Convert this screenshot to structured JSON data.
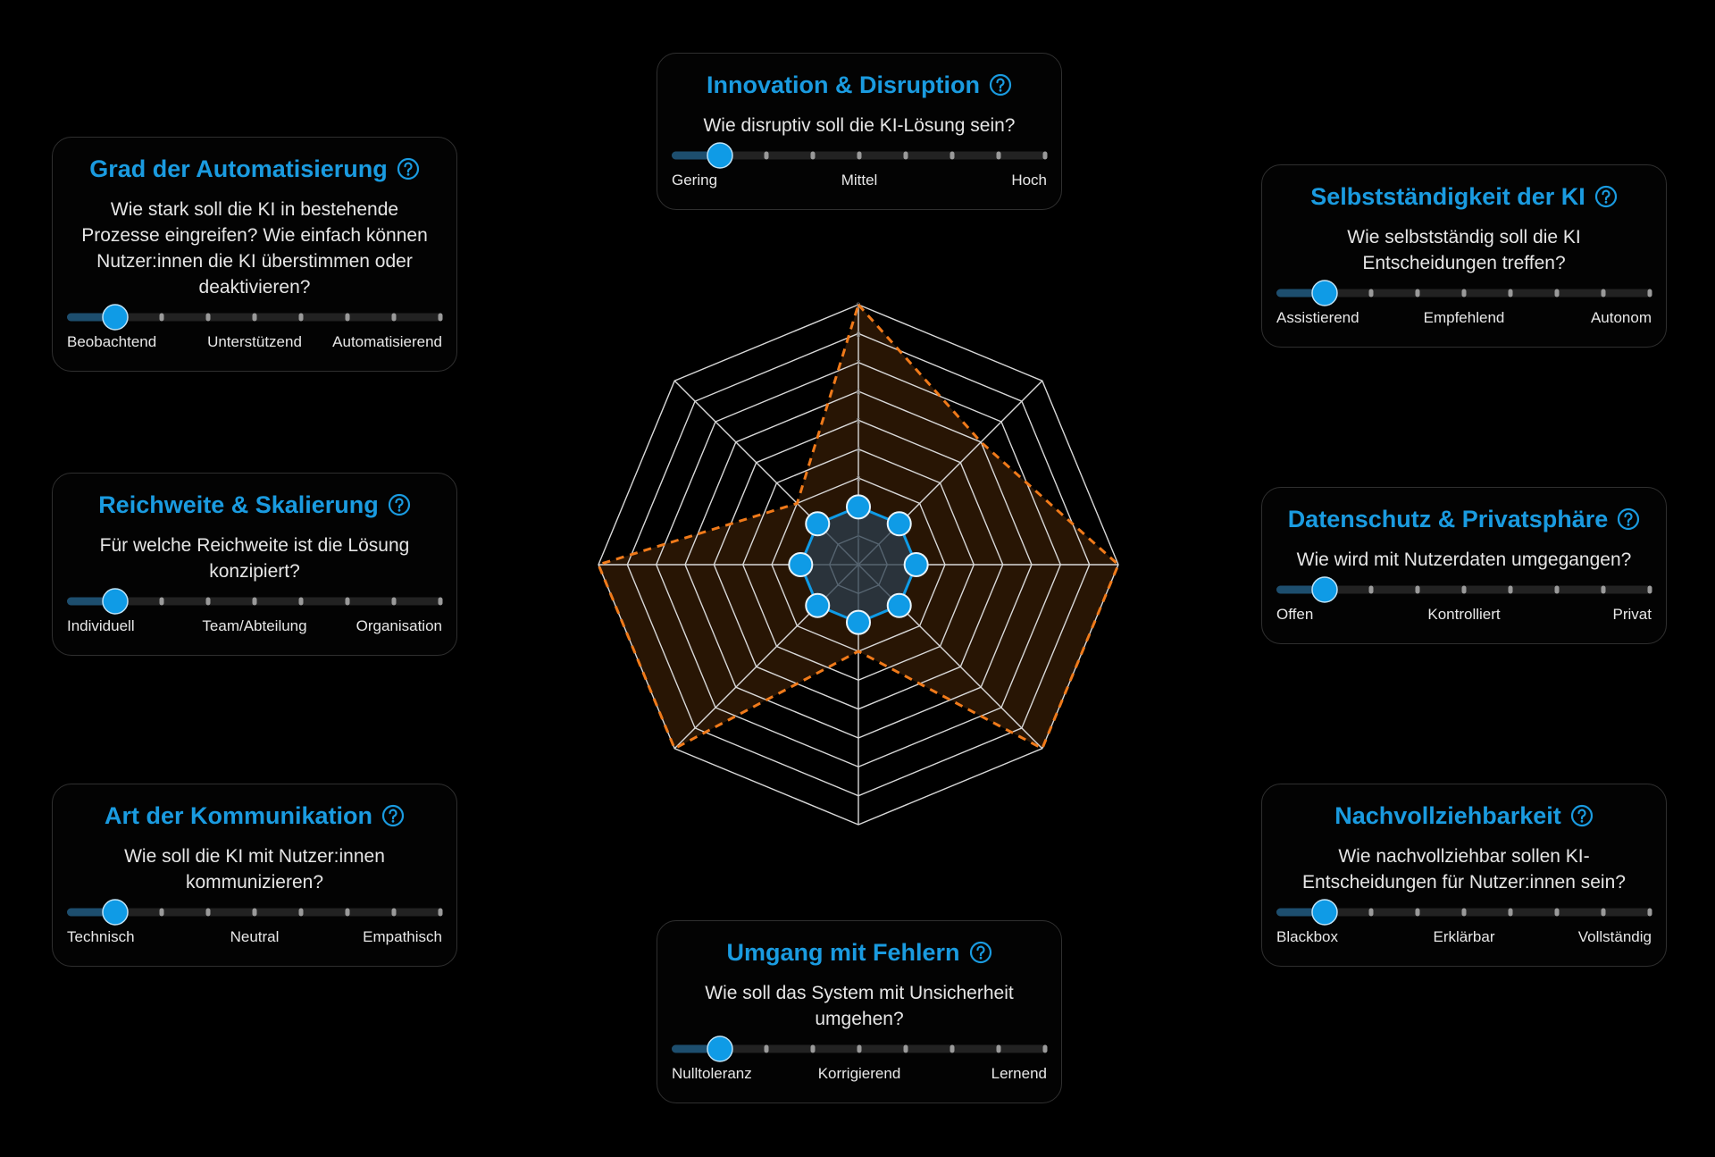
{
  "cards": [
    {
      "title": "Innovation & Disruption",
      "question": "Wie disruptiv soll die KI-Lösung sein?",
      "labels": [
        "Gering",
        "Mittel",
        "Hoch"
      ],
      "value": 2
    },
    {
      "title": "Selbstständigkeit der KI",
      "question": "Wie selbstständig soll die KI Entscheidungen treffen?",
      "labels": [
        "Assistierend",
        "Empfehlend",
        "Autonom"
      ],
      "value": 2
    },
    {
      "title": "Datenschutz & Privatsphäre",
      "question": "Wie wird mit Nutzerdaten umgegangen?",
      "labels": [
        "Offen",
        "Kontrolliert",
        "Privat"
      ],
      "value": 2
    },
    {
      "title": "Nachvollziehbarkeit",
      "question": "Wie nachvollziehbar sollen KI-Entscheidungen für Nutzer:innen sein?",
      "labels": [
        "Blackbox",
        "Erklärbar",
        "Vollständig"
      ],
      "value": 2
    },
    {
      "title": "Umgang mit Fehlern",
      "question": "Wie soll das System mit Unsicherheit umgehen?",
      "labels": [
        "Nulltoleranz",
        "Korrigierend",
        "Lernend"
      ],
      "value": 2
    },
    {
      "title": "Art der Kommunikation",
      "question": "Wie soll die KI mit Nutzer:innen kommunizieren?",
      "labels": [
        "Technisch",
        "Neutral",
        "Empathisch"
      ],
      "value": 2
    },
    {
      "title": "Reichweite & Skalierung",
      "question": "Für welche Reichweite ist die Lösung konzipiert?",
      "labels": [
        "Individuell",
        "Team/Abteilung",
        "Organisation"
      ],
      "value": 2
    },
    {
      "title": "Grad der Automatisierung",
      "question": "Wie stark soll die KI in bestehende Prozesse eingreifen? Wie einfach können Nutzer:innen die KI überstimmen oder deaktivieren?",
      "labels": [
        "Beobachtend",
        "Unterstützend",
        "Automatisierend"
      ],
      "value": 2
    }
  ],
  "slider_range": [
    1,
    9
  ],
  "radar": {
    "range": [
      0,
      9
    ],
    "ticks": [
      1,
      2,
      3,
      4,
      5,
      6,
      7,
      8,
      9
    ],
    "current_color": "#0f9be6",
    "target": {
      "color": "#f07a1a",
      "values": [
        9,
        6,
        9,
        9,
        3,
        9,
        9,
        3
      ]
    }
  }
}
